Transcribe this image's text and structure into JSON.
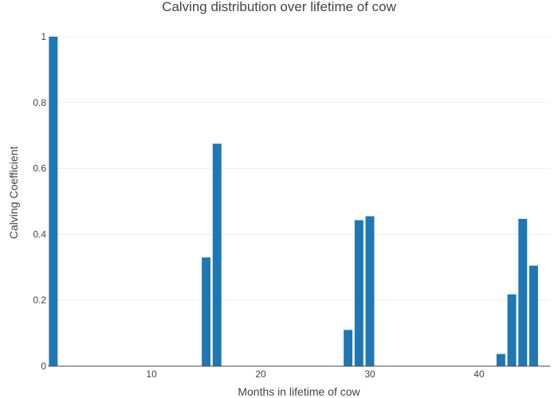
{
  "chart_data": {
    "type": "bar",
    "title": "Calving distribution over lifetime of cow",
    "xlabel": "Months in lifetime of cow",
    "ylabel": "Calving Coefficient",
    "xlim": [
      0.5,
      46.5
    ],
    "ylim": [
      0,
      1
    ],
    "xticks": [
      10,
      20,
      30,
      40
    ],
    "yticks": [
      0,
      0.2,
      0.4,
      0.6,
      0.8,
      1
    ],
    "ytick_labels": [
      "0",
      "0.2",
      "0.4",
      "0.6",
      "0.8",
      "1"
    ],
    "grid": true,
    "bar_color": "#1f77b4",
    "series": [
      {
        "x": [
          1,
          15,
          16,
          28,
          29,
          30,
          42,
          43,
          44,
          45
        ],
        "values": [
          1.0,
          0.33,
          0.675,
          0.11,
          0.443,
          0.455,
          0.037,
          0.218,
          0.447,
          0.305
        ]
      }
    ]
  }
}
